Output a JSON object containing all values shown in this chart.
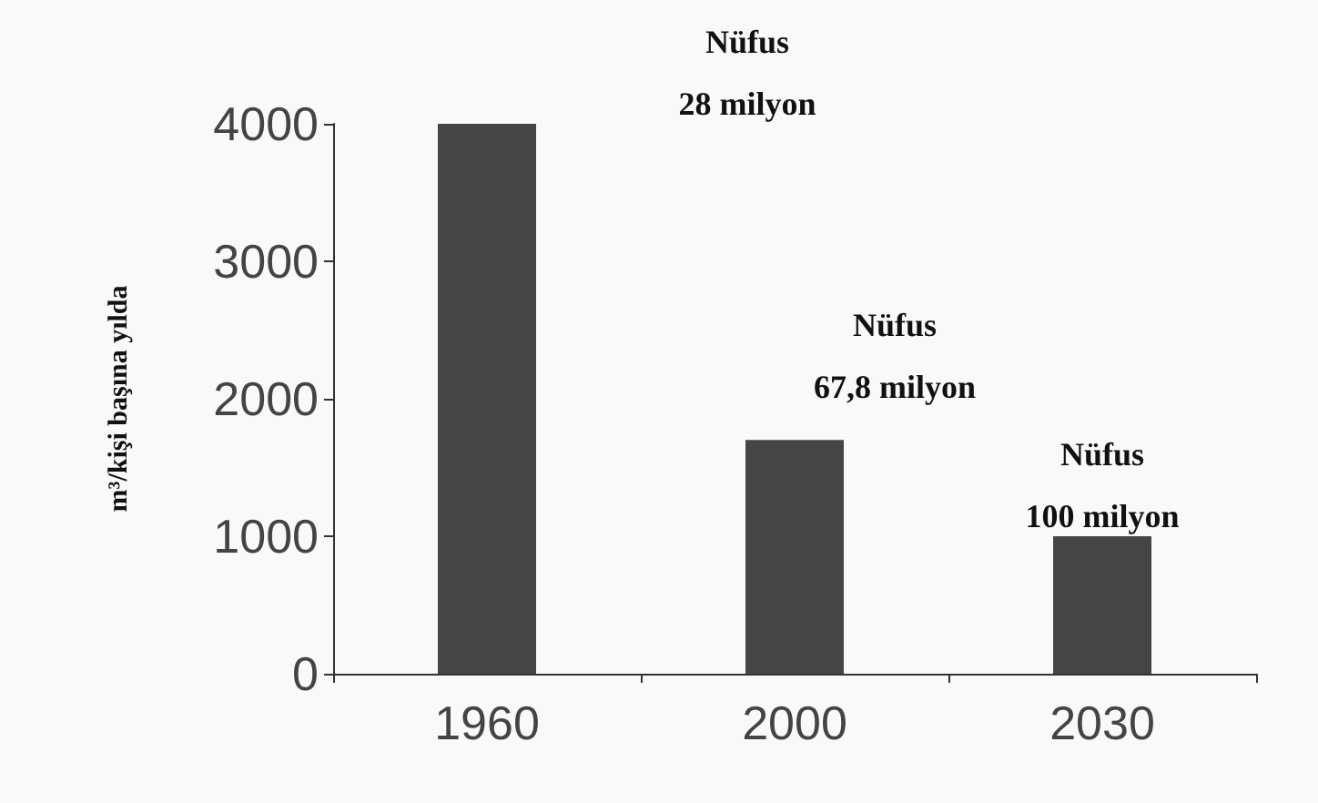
{
  "chart_data": {
    "type": "bar",
    "ylabel": "m³/kişi başına yılda",
    "categories": [
      "1960",
      "2000",
      "2030"
    ],
    "values": [
      4000,
      1700,
      1000
    ],
    "color": "#454545",
    "ylim": [
      0,
      4000
    ],
    "yticks": [
      0,
      1000,
      2000,
      3000,
      4000
    ],
    "grid": false,
    "annotations": [
      "Nüfus\n28 milyon",
      "Nüfus\n67,8 milyon",
      "Nüfus\n100 milyon"
    ]
  }
}
